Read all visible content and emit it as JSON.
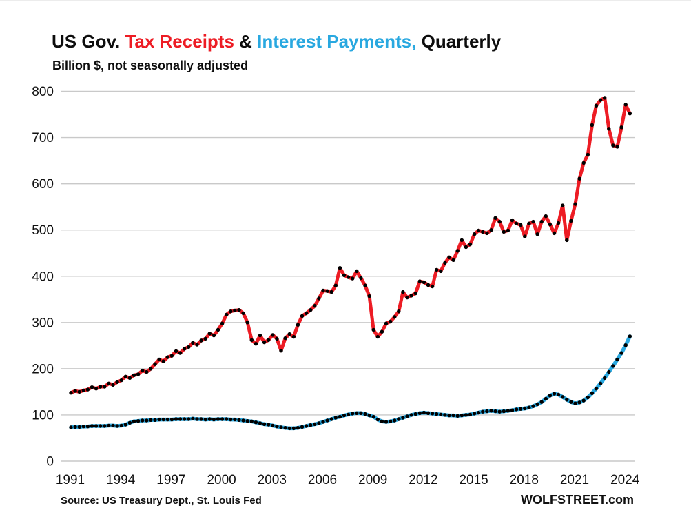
{
  "title": {
    "full": "US Gov. Tax Receipts & Interest Payments, Quarterly",
    "parts": [
      {
        "text": "US Gov. ",
        "color": "#0d0d0d"
      },
      {
        "text": "Tax Receipts",
        "color": "#ED1C24"
      },
      {
        "text": " & ",
        "color": "#0d0d0d"
      },
      {
        "text": "Interest Payments,",
        "color": "#29A8E0"
      },
      {
        "text": " Quarterly",
        "color": "#0d0d0d"
      }
    ]
  },
  "subtitle": "Billion $, not seasonally adjusted",
  "source": "Source: US Treasury Dept., St. Louis Fed",
  "branding": "WOLFSTREET.com",
  "colors": {
    "tax_receipts_line": "#ED1C24",
    "interest_payments_line": "#29A8E0",
    "marker": "#000000",
    "gridline": "#c9c9c9",
    "text": "#111111",
    "background": "#ffffff"
  },
  "chart_data": {
    "type": "line",
    "title": "US Gov. Tax Receipts & Interest Payments, Quarterly",
    "subtitle": "Billion $, not seasonally adjusted",
    "xlabel": "",
    "ylabel": "Billion $",
    "x_unit": "quarter",
    "x_start": "1991Q1",
    "x_end": "2024Q2",
    "x_tick_labels": [
      "1991",
      "1994",
      "1997",
      "2000",
      "2003",
      "2006",
      "2009",
      "2012",
      "2015",
      "2018",
      "2021",
      "2024"
    ],
    "y_ticks": [
      0,
      100,
      200,
      300,
      400,
      500,
      600,
      700,
      800
    ],
    "ylim": [
      0,
      800
    ],
    "grid": "horizontal-only",
    "legend": "color-coded-in-title",
    "series": [
      {
        "name": "Tax Receipts",
        "color": "#ED1C24",
        "line_width": 5,
        "marker": "black-dot",
        "values": [
          148,
          152,
          150,
          153,
          155,
          160,
          157,
          161,
          161,
          168,
          165,
          171,
          175,
          183,
          180,
          186,
          188,
          196,
          193,
          200,
          210,
          220,
          216,
          225,
          228,
          238,
          234,
          243,
          247,
          256,
          252,
          261,
          265,
          276,
          272,
          284,
          298,
          317,
          324,
          326,
          327,
          320,
          300,
          262,
          254,
          272,
          257,
          262,
          273,
          265,
          239,
          266,
          275,
          269,
          295,
          314,
          320,
          327,
          336,
          352,
          369,
          368,
          366,
          380,
          418,
          402,
          398,
          395,
          411,
          396,
          380,
          357,
          284,
          269,
          280,
          298,
          302,
          312,
          324,
          366,
          354,
          358,
          363,
          389,
          387,
          381,
          378,
          414,
          411,
          429,
          441,
          435,
          455,
          478,
          463,
          469,
          491,
          499,
          496,
          493,
          500,
          526,
          518,
          496,
          499,
          521,
          514,
          511,
          486,
          514,
          518,
          491,
          518,
          530,
          512,
          493,
          515,
          553,
          478,
          520,
          556,
          611,
          645,
          663,
          727,
          769,
          781,
          786,
          719,
          683,
          680,
          722,
          771,
          752
        ]
      },
      {
        "name": "Interest Payments",
        "color": "#29A8E0",
        "line_width": 5.5,
        "marker": "black-dot",
        "values": [
          73,
          74,
          74,
          75,
          75,
          76,
          76,
          76,
          76,
          77,
          77,
          76,
          77,
          79,
          83,
          86,
          87,
          88,
          88,
          89,
          89,
          90,
          90,
          90,
          90,
          91,
          91,
          91,
          91,
          92,
          91,
          91,
          90,
          91,
          90,
          91,
          91,
          91,
          90,
          90,
          89,
          88,
          87,
          86,
          84,
          82,
          80,
          79,
          77,
          75,
          73,
          72,
          71,
          71,
          72,
          74,
          76,
          78,
          80,
          82,
          85,
          88,
          91,
          94,
          96,
          99,
          101,
          103,
          104,
          104,
          102,
          99,
          96,
          90,
          86,
          85,
          86,
          88,
          91,
          94,
          97,
          100,
          102,
          104,
          105,
          104,
          103,
          102,
          101,
          100,
          99,
          99,
          98,
          99,
          100,
          101,
          103,
          105,
          107,
          108,
          109,
          108,
          107,
          108,
          109,
          110,
          112,
          113,
          114,
          116,
          119,
          123,
          128,
          135,
          142,
          146,
          144,
          139,
          133,
          128,
          125,
          127,
          131,
          138,
          147,
          157,
          168,
          180,
          193,
          206,
          220,
          234,
          251,
          270
        ]
      }
    ]
  }
}
